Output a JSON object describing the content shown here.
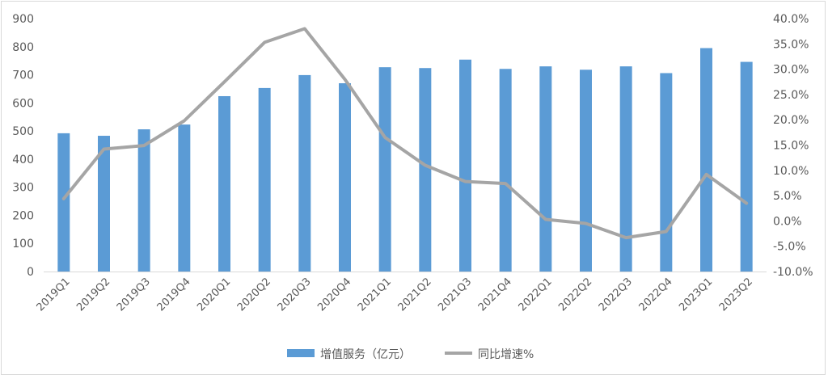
{
  "chart_data": {
    "type": "bar",
    "categories": [
      "2019Q1",
      "2019Q2",
      "2019Q3",
      "2019Q4",
      "2020Q1",
      "2020Q2",
      "2020Q3",
      "2020Q4",
      "2021Q1",
      "2021Q2",
      "2021Q3",
      "2021Q4",
      "2022Q1",
      "2022Q2",
      "2022Q3",
      "2022Q4",
      "2023Q1",
      "2023Q2"
    ],
    "series": [
      {
        "name": "增值服务（亿元）",
        "type": "bar",
        "axis": "left",
        "color": "#5b9bd5",
        "values": [
          492,
          483,
          506,
          523,
          624,
          653,
          699,
          670,
          727,
          724,
          754,
          721,
          730,
          718,
          730,
          706,
          795,
          746
        ]
      },
      {
        "name": "同比增速%",
        "type": "line",
        "axis": "right",
        "color": "#a5a5a5",
        "values": [
          4.4,
          14.2,
          14.9,
          19.8,
          27.5,
          35.3,
          38.0,
          28.0,
          16.5,
          11.0,
          7.8,
          7.4,
          0.3,
          -0.5,
          -3.3,
          -2.1,
          9.2,
          3.5
        ]
      }
    ],
    "y_left": {
      "min": 0,
      "max": 900,
      "step": 100,
      "ticks": [
        "0",
        "100",
        "200",
        "300",
        "400",
        "500",
        "600",
        "700",
        "800",
        "900"
      ]
    },
    "y_right": {
      "min": -10,
      "max": 40,
      "step": 5,
      "ticks": [
        "-10.0%",
        "-5.0%",
        "0.0%",
        "5.0%",
        "10.0%",
        "15.0%",
        "20.0%",
        "25.0%",
        "30.0%",
        "35.0%",
        "40.0%"
      ]
    },
    "grid": false,
    "legend": "bottom-center"
  }
}
